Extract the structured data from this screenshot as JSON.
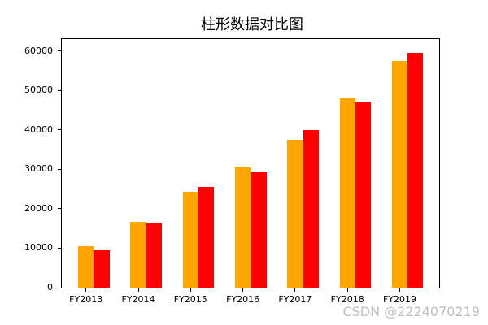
{
  "chart_data": {
    "type": "bar",
    "title": "柱形数据对比图",
    "categories": [
      "FY2013",
      "FY2014",
      "FY2015",
      "FY2016",
      "FY2017",
      "FY2018",
      "FY2019"
    ],
    "series": [
      {
        "name": "orange-series",
        "color": "#FFA500",
        "values": [
          10500,
          16700,
          24300,
          30500,
          37500,
          48000,
          57400
        ]
      },
      {
        "name": "red-series",
        "color": "#FF0000",
        "values": [
          9500,
          16500,
          25500,
          29300,
          40000,
          46900,
          59500
        ]
      }
    ],
    "xlabel": "",
    "ylabel": "",
    "yticks": [
      0,
      10000,
      20000,
      30000,
      40000,
      50000,
      60000
    ],
    "ylim": [
      0,
      63000
    ],
    "grid": false,
    "legend": null
  },
  "watermark": {
    "text": "CSDN @2224070219",
    "color": "#c0c0c0"
  }
}
